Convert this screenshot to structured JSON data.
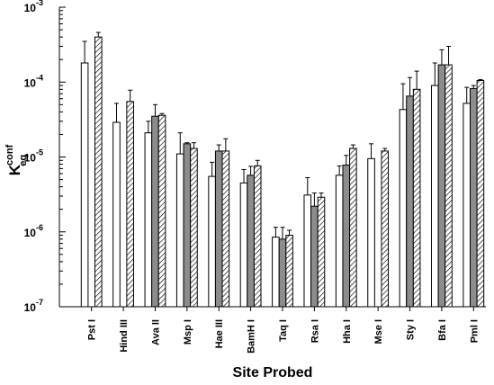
{
  "chart_data": {
    "type": "bar",
    "title": "",
    "xlabel": "Site Probed",
    "ylabel": {
      "base": "K",
      "superscript": "conf",
      "subscript": "eq"
    },
    "yscale": "log",
    "ylim": [
      1e-07,
      0.001
    ],
    "yticks": [
      {
        "value": 1e-07,
        "mantissa": "10",
        "exponent": "-7"
      },
      {
        "value": 1e-06,
        "mantissa": "10",
        "exponent": "-6"
      },
      {
        "value": 1e-05,
        "mantissa": "10",
        "exponent": "-5"
      },
      {
        "value": 0.0001,
        "mantissa": "10",
        "exponent": "-4"
      },
      {
        "value": 0.001,
        "mantissa": "10",
        "exponent": "-3"
      }
    ],
    "categories": [
      "Pst I",
      "Hind III",
      "Ava II",
      "Msp I",
      "Hae III",
      "BamH I",
      "Taq I",
      "Rsa I",
      "Hha I",
      "Mse I",
      "Sty I",
      "Bfa I",
      "Pml I"
    ],
    "series": [
      {
        "fill": "white",
        "values": [
          0.00018,
          2.9e-05,
          2.1e-05,
          1.1e-05,
          5.5e-06,
          4.5e-06,
          8.5e-07,
          3.1e-06,
          5.7e-06,
          9.5e-06,
          4.3e-05,
          9e-05,
          5.2e-05
        ],
        "err": [
          0.00035,
          5.2e-05,
          3e-05,
          2.1e-05,
          8.5e-06,
          6.8e-06,
          1.15e-06,
          5.3e-06,
          7.6e-06,
          1.5e-05,
          9.5e-05,
          0.00018,
          8.5e-05
        ]
      },
      {
        "fill": "gray",
        "values": [
          null,
          null,
          3.5e-05,
          1.5e-05,
          1.2e-05,
          5.7e-06,
          8e-07,
          2.2e-06,
          7.8e-06,
          null,
          6.5e-05,
          0.00017,
          8.2e-05
        ],
        "err": [
          null,
          null,
          5e-05,
          1.55e-05,
          1.45e-05,
          7.5e-06,
          1.15e-06,
          3.3e-06,
          1.05e-05,
          null,
          0.000115,
          0.00027,
          9e-05
        ]
      },
      {
        "fill": "hatched",
        "values": [
          0.0004,
          5.5e-05,
          3.6e-05,
          1.3e-05,
          1.2e-05,
          7.6e-06,
          9e-07,
          2.9e-06,
          1.3e-05,
          1.2e-05,
          8e-05,
          0.00017,
          0.000105
        ],
        "err": [
          0.00046,
          7.8e-05,
          3.8e-05,
          1.55e-05,
          1.75e-05,
          9e-06,
          1.05e-06,
          3.3e-06,
          1.45e-05,
          1.3e-05,
          0.00014,
          0.0003,
          0.000108
        ]
      }
    ],
    "colors": {
      "white": "#ffffff",
      "gray": "#8c8c8c",
      "hatch": "#000000",
      "outline": "#000000"
    },
    "grid": false,
    "legend": "none"
  }
}
